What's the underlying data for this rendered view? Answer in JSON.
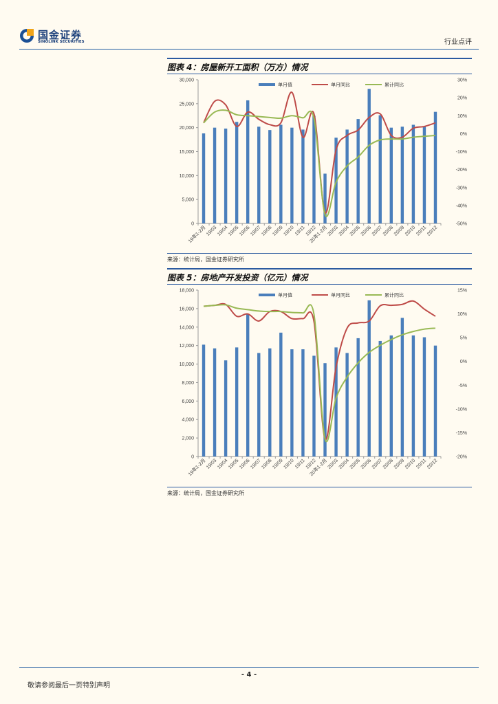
{
  "header": {
    "logo_cn": "国金证券",
    "logo_en": "SINOLINK SECURITIES",
    "section": "行业点评"
  },
  "figures": [
    {
      "title": "图表 4：房屋新开工面积（万方）情况",
      "source": "来源：统计局，国金证券研究所"
    },
    {
      "title": "图表 5：房地产开发投资（亿元）情况",
      "source": "来源：统计局，国金证券研究所"
    }
  ],
  "chart_data": [
    {
      "type": "bar",
      "title": "",
      "categories": [
        "19年1-2月",
        "19/03",
        "19/04",
        "19/05",
        "19/06",
        "19/07",
        "19/08",
        "19/09",
        "19/10",
        "19/11",
        "19/12",
        "20年1-2月",
        "20/03",
        "20/04",
        "20/05",
        "20/06",
        "20/07",
        "20/08",
        "20/09",
        "20/10",
        "20/11",
        "20/12"
      ],
      "series": [
        {
          "name": "单月值",
          "kind": "bar",
          "axis": "left",
          "color": "#4a7ebb",
          "values": [
            18800,
            20000,
            19800,
            21200,
            25700,
            20200,
            19500,
            20600,
            20000,
            19600,
            22500,
            10400,
            17900,
            19600,
            21800,
            28100,
            22600,
            20000,
            20200,
            20600,
            20300,
            23300
          ]
        },
        {
          "name": "单月同比",
          "kind": "line",
          "axis": "right",
          "color": "#be4b48",
          "values": [
            6,
            18,
            16,
            4,
            12,
            8,
            5,
            6,
            23,
            -2,
            11,
            -44,
            -9,
            -1,
            2,
            9,
            11,
            -1,
            -2,
            3,
            4,
            6
          ]
        },
        {
          "name": "累计同比",
          "kind": "line",
          "axis": "right",
          "color": "#98b954",
          "values": [
            6,
            12,
            13,
            10.5,
            10,
            9.5,
            9,
            8.6,
            10,
            8.8,
            8.5,
            -45,
            -27,
            -18,
            -13,
            -6.5,
            -3.5,
            -3,
            -3,
            -2,
            -1.5,
            -1
          ]
        }
      ],
      "ylim": [
        0,
        30000
      ],
      "yticks": [
        "0",
        "5,000",
        "10,000",
        "15,000",
        "20,000",
        "25,000",
        "30,000"
      ],
      "y2lim": [
        -50,
        30
      ],
      "y2ticks": [
        "-50%",
        "-40%",
        "-30%",
        "-20%",
        "-10%",
        "0%",
        "10%",
        "20%",
        "30%"
      ],
      "legend": "top",
      "grid": false
    },
    {
      "type": "bar",
      "title": "",
      "categories": [
        "19年1-2月",
        "19/03",
        "19/04",
        "19/05",
        "19/06",
        "19/07",
        "19/08",
        "19/09",
        "19/10",
        "19/11",
        "19/12",
        "20年1-2月",
        "20/03",
        "20/04",
        "20/05",
        "20/06",
        "20/07",
        "20/08",
        "20/09",
        "20/10",
        "20/11",
        "20/12"
      ],
      "series": [
        {
          "name": "单月值",
          "kind": "bar",
          "axis": "left",
          "color": "#4a7ebb",
          "values": [
            12100,
            11700,
            10400,
            11800,
            15400,
            11200,
            11700,
            13400,
            11600,
            11600,
            10900,
            10100,
            11800,
            11200,
            12800,
            16900,
            12500,
            13100,
            15000,
            13100,
            12900,
            12000
          ]
        },
        {
          "name": "单月同比",
          "kind": "line",
          "axis": "right",
          "color": "#be4b48",
          "values": [
            11.6,
            11.8,
            12,
            9.5,
            10,
            8.5,
            10.5,
            10.5,
            9,
            9,
            8.4,
            -16.3,
            -1.2,
            7,
            8.1,
            8.5,
            11.7,
            11.8,
            12,
            12.7,
            11,
            9.5
          ]
        },
        {
          "name": "累计同比",
          "kind": "line",
          "axis": "right",
          "color": "#98b954",
          "values": [
            11.6,
            11.8,
            11.9,
            11.2,
            10.9,
            10.6,
            10.5,
            10.5,
            10.3,
            10.2,
            9.9,
            -16.3,
            -7.7,
            -3.3,
            -0.3,
            1.9,
            3.4,
            4.6,
            5.6,
            6.3,
            6.8,
            7
          ]
        }
      ],
      "ylim": [
        0,
        18000
      ],
      "yticks": [
        "0",
        "2,000",
        "4,000",
        "6,000",
        "8,000",
        "10,000",
        "12,000",
        "14,000",
        "16,000",
        "18,000"
      ],
      "y2lim": [
        -20,
        15
      ],
      "y2ticks": [
        "-20%",
        "-15%",
        "-10%",
        "-5%",
        "0%",
        "5%",
        "10%",
        "15%"
      ],
      "legend": "top",
      "grid": false
    }
  ],
  "footer": {
    "page": "- 4 -",
    "note": "敬请参阅最后一页特别声明"
  }
}
